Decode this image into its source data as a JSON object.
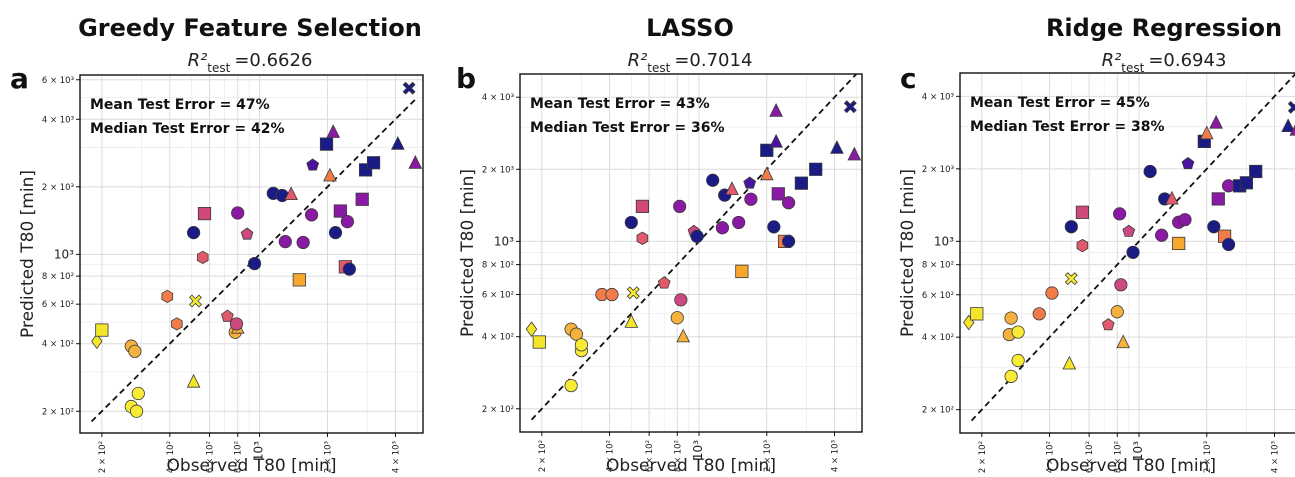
{
  "chart_data": [
    {
      "type": "scatter",
      "panel_letter": "a",
      "title": "Greedy Feature Selection",
      "r2_label": "R²",
      "r2_sub": "test",
      "r2_value": "=0.6626",
      "annotations": [
        "Mean Test Error = 47%",
        "Median Test Error = 42%"
      ],
      "xlabel": "Observed T80 [min]",
      "ylabel": "Predicted T80 [min]",
      "x_scale": "log",
      "y_scale": "log",
      "xlim": [
        160,
        5300
      ],
      "ylim": [
        160,
        6300
      ],
      "x_ticks": [
        "2 × 10²",
        "4 × 10²",
        "6 × 10²",
        "8 × 10²",
        "10³",
        "2 × 10³",
        "4 × 10³"
      ],
      "y_ticks": [
        "2 × 10²",
        "4 × 10²",
        "6 × 10²",
        "8 × 10²",
        "10³",
        "2 × 10³",
        "4 × 10³",
        "6 × 10³"
      ],
      "grid": true,
      "diagonal": "y = x (dashed)",
      "points": [
        {
          "x": 190,
          "y": 410,
          "m": "diamond",
          "c": "#f3e52a"
        },
        {
          "x": 200,
          "y": 460,
          "m": "square",
          "c": "#f3e52a"
        },
        {
          "x": 270,
          "y": 390,
          "m": "circle",
          "c": "#f5b13d"
        },
        {
          "x": 280,
          "y": 370,
          "m": "circle",
          "c": "#f5b13d"
        },
        {
          "x": 270,
          "y": 210,
          "m": "circle",
          "c": "#f7eb35"
        },
        {
          "x": 285,
          "y": 200,
          "m": "circle",
          "c": "#f7eb35"
        },
        {
          "x": 290,
          "y": 240,
          "m": "circle",
          "c": "#f7eb35"
        },
        {
          "x": 390,
          "y": 650,
          "m": "hexagon",
          "c": "#f07c4a"
        },
        {
          "x": 430,
          "y": 490,
          "m": "hexagon",
          "c": "#f07c4a"
        },
        {
          "x": 520,
          "y": 620,
          "m": "cross",
          "c": "#f7eb35"
        },
        {
          "x": 510,
          "y": 270,
          "m": "triangle",
          "c": "#f3e52a"
        },
        {
          "x": 510,
          "y": 1250,
          "m": "circle",
          "c": "#1a1b85"
        },
        {
          "x": 560,
          "y": 970,
          "m": "hexagon",
          "c": "#e05a6b"
        },
        {
          "x": 570,
          "y": 1520,
          "m": "square",
          "c": "#d0487a"
        },
        {
          "x": 720,
          "y": 530,
          "m": "pentagon",
          "c": "#e05a6b"
        },
        {
          "x": 780,
          "y": 450,
          "m": "circle",
          "c": "#f5b13d"
        },
        {
          "x": 800,
          "y": 470,
          "m": "triangle",
          "c": "#f5b13d"
        },
        {
          "x": 790,
          "y": 490,
          "m": "circle",
          "c": "#cc4880"
        },
        {
          "x": 800,
          "y": 1530,
          "m": "circle",
          "c": "#8a1aa5"
        },
        {
          "x": 880,
          "y": 1230,
          "m": "pentagon",
          "c": "#cc4880"
        },
        {
          "x": 950,
          "y": 910,
          "m": "circle",
          "c": "#1a1b85"
        },
        {
          "x": 1150,
          "y": 1870,
          "m": "circle",
          "c": "#1a1b85"
        },
        {
          "x": 1260,
          "y": 1830,
          "m": "circle",
          "c": "#1a1b85"
        },
        {
          "x": 1300,
          "y": 1140,
          "m": "circle",
          "c": "#8a1aa5"
        },
        {
          "x": 1380,
          "y": 1850,
          "m": "triangle",
          "c": "#e05a6b"
        },
        {
          "x": 1500,
          "y": 770,
          "m": "square",
          "c": "#f7a72d"
        },
        {
          "x": 1560,
          "y": 1130,
          "m": "circle",
          "c": "#8a1aa5"
        },
        {
          "x": 1700,
          "y": 1500,
          "m": "circle",
          "c": "#8a1aa5"
        },
        {
          "x": 1720,
          "y": 2500,
          "m": "pentagon",
          "c": "#4a14a0"
        },
        {
          "x": 1980,
          "y": 3100,
          "m": "square",
          "c": "#1a1b85"
        },
        {
          "x": 2050,
          "y": 2240,
          "m": "triangle",
          "c": "#f07c4a"
        },
        {
          "x": 2120,
          "y": 3500,
          "m": "triangle",
          "c": "#8a1aa5"
        },
        {
          "x": 2170,
          "y": 1250,
          "m": "circle",
          "c": "#1a1b85"
        },
        {
          "x": 2280,
          "y": 1560,
          "m": "square",
          "c": "#8a1aa5"
        },
        {
          "x": 2400,
          "y": 880,
          "m": "square",
          "c": "#e05a6b"
        },
        {
          "x": 2500,
          "y": 860,
          "m": "circle",
          "c": "#1a1b85"
        },
        {
          "x": 2450,
          "y": 1400,
          "m": "circle",
          "c": "#8a1aa5"
        },
        {
          "x": 2850,
          "y": 1760,
          "m": "square",
          "c": "#8a1aa5"
        },
        {
          "x": 2950,
          "y": 2380,
          "m": "square",
          "c": "#1a1b85"
        },
        {
          "x": 3200,
          "y": 2560,
          "m": "square",
          "c": "#1a1b85"
        },
        {
          "x": 4100,
          "y": 3100,
          "m": "triangle",
          "c": "#1a1b85"
        },
        {
          "x": 4600,
          "y": 5500,
          "m": "cross",
          "c": "#1a1b85"
        },
        {
          "x": 4900,
          "y": 2550,
          "m": "triangle",
          "c": "#8a1aa5"
        }
      ]
    },
    {
      "type": "scatter",
      "panel_letter": "b",
      "title": "LASSO",
      "r2_label": "R²",
      "r2_sub": "test",
      "r2_value": "=0.7014",
      "annotations": [
        "Mean Test Error = 43%",
        "Median Test Error = 36%"
      ],
      "xlabel": "Observed T80 [min]",
      "ylabel": "Predicted T80 [min]",
      "x_scale": "log",
      "y_scale": "log",
      "xlim": [
        160,
        5300
      ],
      "ylim": [
        160,
        5000
      ],
      "x_ticks": [
        "2 × 10²",
        "4 × 10²",
        "6 × 10²",
        "8 × 10²",
        "10³",
        "2 × 10³",
        "4 × 10³"
      ],
      "y_ticks": [
        "2 × 10²",
        "4 × 10²",
        "6 × 10²",
        "8 × 10²",
        "10³",
        "2 × 10³",
        "4 × 10³"
      ],
      "grid": true,
      "diagonal": "y = x (dashed)",
      "points": [
        {
          "x": 180,
          "y": 430,
          "m": "diamond",
          "c": "#f3e52a"
        },
        {
          "x": 195,
          "y": 380,
          "m": "square",
          "c": "#f3e52a"
        },
        {
          "x": 270,
          "y": 430,
          "m": "circle",
          "c": "#f5b13d"
        },
        {
          "x": 285,
          "y": 410,
          "m": "circle",
          "c": "#f5b13d"
        },
        {
          "x": 300,
          "y": 350,
          "m": "circle",
          "c": "#f7eb35"
        },
        {
          "x": 300,
          "y": 370,
          "m": "circle",
          "c": "#f7eb35"
        },
        {
          "x": 270,
          "y": 250,
          "m": "circle",
          "c": "#f7eb35"
        },
        {
          "x": 370,
          "y": 600,
          "m": "circle",
          "c": "#f07c4a"
        },
        {
          "x": 410,
          "y": 600,
          "m": "circle",
          "c": "#f07c4a"
        },
        {
          "x": 510,
          "y": 610,
          "m": "cross",
          "c": "#f7eb35"
        },
        {
          "x": 500,
          "y": 460,
          "m": "triangle",
          "c": "#f3e52a"
        },
        {
          "x": 500,
          "y": 1200,
          "m": "circle",
          "c": "#1a1b85"
        },
        {
          "x": 560,
          "y": 1030,
          "m": "hexagon",
          "c": "#e05a6b"
        },
        {
          "x": 560,
          "y": 1400,
          "m": "square",
          "c": "#d0487a"
        },
        {
          "x": 700,
          "y": 670,
          "m": "pentagon",
          "c": "#e05a6b"
        },
        {
          "x": 800,
          "y": 480,
          "m": "circle",
          "c": "#f5b13d"
        },
        {
          "x": 850,
          "y": 400,
          "m": "triangle",
          "c": "#f5b13d"
        },
        {
          "x": 830,
          "y": 570,
          "m": "circle",
          "c": "#cc4880"
        },
        {
          "x": 820,
          "y": 1400,
          "m": "circle",
          "c": "#8a1aa5"
        },
        {
          "x": 950,
          "y": 1100,
          "m": "pentagon",
          "c": "#cc4880"
        },
        {
          "x": 980,
          "y": 1050,
          "m": "circle",
          "c": "#1a1b85"
        },
        {
          "x": 1150,
          "y": 1800,
          "m": "circle",
          "c": "#1a1b85"
        },
        {
          "x": 1300,
          "y": 1560,
          "m": "circle",
          "c": "#1a1b85"
        },
        {
          "x": 1270,
          "y": 1140,
          "m": "circle",
          "c": "#8a1aa5"
        },
        {
          "x": 1400,
          "y": 1650,
          "m": "triangle",
          "c": "#e05a6b"
        },
        {
          "x": 1550,
          "y": 750,
          "m": "square",
          "c": "#f7a72d"
        },
        {
          "x": 1500,
          "y": 1200,
          "m": "circle",
          "c": "#8a1aa5"
        },
        {
          "x": 1700,
          "y": 1500,
          "m": "circle",
          "c": "#8a1aa5"
        },
        {
          "x": 1680,
          "y": 1750,
          "m": "pentagon",
          "c": "#4a14a0"
        },
        {
          "x": 2000,
          "y": 2400,
          "m": "square",
          "c": "#1a1b85"
        },
        {
          "x": 2000,
          "y": 1900,
          "m": "triangle",
          "c": "#f07c4a"
        },
        {
          "x": 2200,
          "y": 3500,
          "m": "triangle",
          "c": "#8a1aa5"
        },
        {
          "x": 2150,
          "y": 1150,
          "m": "circle",
          "c": "#1a1b85"
        },
        {
          "x": 2250,
          "y": 1580,
          "m": "square",
          "c": "#8a1aa5"
        },
        {
          "x": 2400,
          "y": 1000,
          "m": "square",
          "c": "#f07c4a"
        },
        {
          "x": 2500,
          "y": 1000,
          "m": "circle",
          "c": "#1a1b85"
        },
        {
          "x": 2500,
          "y": 1450,
          "m": "circle",
          "c": "#8a1aa5"
        },
        {
          "x": 2200,
          "y": 2600,
          "m": "triangle",
          "c": "#4a14a0"
        },
        {
          "x": 2850,
          "y": 1750,
          "m": "square",
          "c": "#1a1b85"
        },
        {
          "x": 3300,
          "y": 2000,
          "m": "square",
          "c": "#1a1b85"
        },
        {
          "x": 4100,
          "y": 2450,
          "m": "triangle",
          "c": "#1a1b85"
        },
        {
          "x": 4700,
          "y": 3650,
          "m": "cross",
          "c": "#1a1b85"
        },
        {
          "x": 4900,
          "y": 2300,
          "m": "triangle",
          "c": "#8a1aa5"
        }
      ]
    },
    {
      "type": "scatter",
      "panel_letter": "c",
      "title": "Ridge Regression",
      "r2_label": "R²",
      "r2_sub": "test",
      "r2_value": "=0.6943",
      "annotations": [
        "Mean Test Error = 45%",
        "Median Test Error = 38%"
      ],
      "xlabel": "Observed T80 [min]",
      "ylabel": "Predicted T80 [min]",
      "x_scale": "log",
      "y_scale": "log",
      "xlim": [
        160,
        5300
      ],
      "ylim": [
        160,
        5000
      ],
      "x_ticks": [
        "2 × 10²",
        "4 × 10²",
        "6 × 10²",
        "8 × 10²",
        "10³",
        "2 × 10³",
        "4 × 10³"
      ],
      "y_ticks": [
        "2 × 10²",
        "4 × 10²",
        "6 × 10²",
        "8 × 10²",
        "10³",
        "2 × 10³",
        "4 × 10³"
      ],
      "grid": true,
      "diagonal": "y = x (dashed)",
      "points": [
        {
          "x": 175,
          "y": 460,
          "m": "diamond",
          "c": "#f3e52a"
        },
        {
          "x": 190,
          "y": 500,
          "m": "square",
          "c": "#f3e52a"
        },
        {
          "x": 270,
          "y": 480,
          "m": "circle",
          "c": "#f5b13d"
        },
        {
          "x": 265,
          "y": 410,
          "m": "circle",
          "c": "#f5b13d"
        },
        {
          "x": 290,
          "y": 420,
          "m": "circle",
          "c": "#f7eb35"
        },
        {
          "x": 290,
          "y": 320,
          "m": "circle",
          "c": "#f7eb35"
        },
        {
          "x": 270,
          "y": 275,
          "m": "circle",
          "c": "#f7eb35"
        },
        {
          "x": 360,
          "y": 500,
          "m": "circle",
          "c": "#f07c4a"
        },
        {
          "x": 410,
          "y": 610,
          "m": "circle",
          "c": "#f07c4a"
        },
        {
          "x": 500,
          "y": 700,
          "m": "cross",
          "c": "#f7eb35"
        },
        {
          "x": 490,
          "y": 310,
          "m": "triangle",
          "c": "#f3e52a"
        },
        {
          "x": 500,
          "y": 1150,
          "m": "circle",
          "c": "#1a1b85"
        },
        {
          "x": 560,
          "y": 960,
          "m": "hexagon",
          "c": "#e05a6b"
        },
        {
          "x": 560,
          "y": 1320,
          "m": "square",
          "c": "#d0487a"
        },
        {
          "x": 730,
          "y": 450,
          "m": "pentagon",
          "c": "#e05a6b"
        },
        {
          "x": 800,
          "y": 510,
          "m": "circle",
          "c": "#f5b13d"
        },
        {
          "x": 850,
          "y": 380,
          "m": "triangle",
          "c": "#f5b13d"
        },
        {
          "x": 830,
          "y": 660,
          "m": "circle",
          "c": "#cc4880"
        },
        {
          "x": 820,
          "y": 1300,
          "m": "circle",
          "c": "#8a1aa5"
        },
        {
          "x": 900,
          "y": 1100,
          "m": "pentagon",
          "c": "#cc4880"
        },
        {
          "x": 940,
          "y": 900,
          "m": "circle",
          "c": "#1a1b85"
        },
        {
          "x": 1120,
          "y": 1950,
          "m": "circle",
          "c": "#1a1b85"
        },
        {
          "x": 1300,
          "y": 1500,
          "m": "circle",
          "c": "#1a1b85"
        },
        {
          "x": 1260,
          "y": 1060,
          "m": "circle",
          "c": "#8a1aa5"
        },
        {
          "x": 1400,
          "y": 1500,
          "m": "triangle",
          "c": "#e05a6b"
        },
        {
          "x": 1500,
          "y": 980,
          "m": "square",
          "c": "#f7a72d"
        },
        {
          "x": 1500,
          "y": 1200,
          "m": "circle",
          "c": "#8a1aa5"
        },
        {
          "x": 1600,
          "y": 1230,
          "m": "circle",
          "c": "#8a1aa5"
        },
        {
          "x": 1650,
          "y": 2100,
          "m": "pentagon",
          "c": "#4a14a0"
        },
        {
          "x": 1950,
          "y": 2600,
          "m": "square",
          "c": "#1a1b85"
        },
        {
          "x": 2000,
          "y": 2800,
          "m": "triangle",
          "c": "#f07c4a"
        },
        {
          "x": 2200,
          "y": 3100,
          "m": "triangle",
          "c": "#8a1aa5"
        },
        {
          "x": 2150,
          "y": 1150,
          "m": "circle",
          "c": "#1a1b85"
        },
        {
          "x": 2250,
          "y": 1500,
          "m": "square",
          "c": "#8a1aa5"
        },
        {
          "x": 2400,
          "y": 1050,
          "m": "square",
          "c": "#f07c4a"
        },
        {
          "x": 2500,
          "y": 970,
          "m": "circle",
          "c": "#1a1b85"
        },
        {
          "x": 2500,
          "y": 1700,
          "m": "circle",
          "c": "#8a1aa5"
        },
        {
          "x": 2800,
          "y": 1700,
          "m": "square",
          "c": "#1a1b85"
        },
        {
          "x": 3000,
          "y": 1750,
          "m": "square",
          "c": "#1a1b85"
        },
        {
          "x": 3300,
          "y": 1950,
          "m": "square",
          "c": "#1a1b85"
        },
        {
          "x": 4600,
          "y": 3000,
          "m": "triangle",
          "c": "#1a1b85"
        },
        {
          "x": 4900,
          "y": 3600,
          "m": "cross",
          "c": "#1a1b85"
        },
        {
          "x": 5000,
          "y": 2900,
          "m": "triangle",
          "c": "#8a1aa5"
        }
      ]
    }
  ]
}
